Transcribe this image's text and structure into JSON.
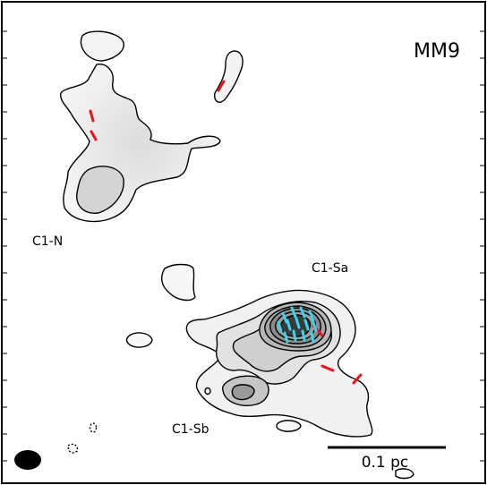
{
  "panel": {
    "title": "MM9",
    "labels": {
      "c1n": "C1-N",
      "c1sa": "C1-Sa",
      "c1sb": "C1-Sb"
    },
    "scalebar": {
      "label": "0.1 pc"
    }
  },
  "colors": {
    "contour": "#000000",
    "fill_light": "#efefef",
    "fill_mid": "#d9d9d9",
    "fill_dark": "#9a9a9a",
    "field_vectors": "#e8141b",
    "core_vectors": "#36d6ee",
    "beam": "#000000"
  }
}
